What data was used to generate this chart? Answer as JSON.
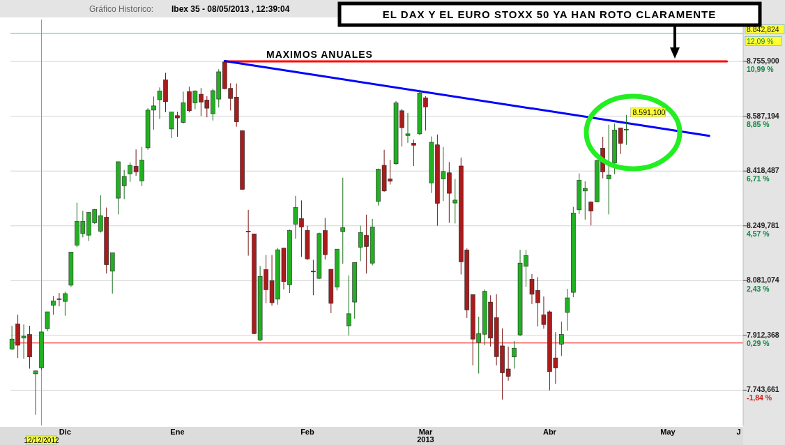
{
  "chart_data": {
    "type": "candlestick",
    "title": "Gráfico Historico:",
    "subtitle": "Ibex 35 - 08/05/2013 , 12:39:04",
    "categories": [
      null,
      null,
      null,
      null,
      null,
      "12/12/2012",
      null,
      null,
      null,
      "Dic",
      null,
      null,
      null,
      null,
      null,
      null,
      null,
      null,
      null,
      null,
      null,
      null,
      null,
      null,
      null,
      null,
      null,
      null,
      "Ene",
      null,
      null,
      null,
      null,
      null,
      null,
      null,
      null,
      null,
      null,
      null,
      null,
      null,
      null,
      null,
      null,
      null,
      null,
      null,
      null,
      null,
      "Feb",
      null,
      null,
      null,
      null,
      null,
      null,
      null,
      null,
      null,
      null,
      null,
      null,
      null,
      null,
      null,
      null,
      null,
      null,
      null,
      "Mar",
      null,
      null,
      null,
      null,
      null,
      null,
      null,
      null,
      null,
      null,
      null,
      null,
      null,
      null,
      null,
      null,
      null,
      null,
      null,
      null,
      "Abr",
      null,
      null,
      null,
      null,
      null,
      null,
      null,
      null,
      null,
      null,
      null,
      null,
      null,
      null,
      null,
      null,
      null,
      null,
      null,
      "May",
      null,
      null,
      null,
      null,
      null,
      null,
      null,
      null,
      null,
      null,
      null,
      "J"
    ],
    "ohlc": [
      [
        7870,
        7942,
        7868,
        7901
      ],
      [
        7948,
        7976,
        7843,
        7882
      ],
      [
        7904,
        7946,
        7840,
        7910
      ],
      [
        7915,
        7942,
        7810,
        7846
      ],
      [
        7794,
        7803,
        7668,
        7803
      ],
      [
        7812,
        7923,
        7807,
        7923
      ],
      [
        7933,
        7985,
        7925,
        7985
      ],
      [
        8005,
        8034,
        7976,
        8018
      ],
      [
        8025,
        8043,
        8002,
        8024
      ],
      [
        8017,
        8047,
        7973,
        8041
      ],
      [
        8067,
        8169,
        8062,
        8169
      ],
      [
        8190,
        8321,
        8184,
        8263
      ],
      [
        8226,
        8296,
        8214,
        8263
      ],
      [
        8221,
        8291,
        8203,
        8291
      ],
      [
        8259,
        8302,
        8255,
        8300
      ],
      [
        8233,
        8344,
        8229,
        8281
      ],
      [
        8276,
        8306,
        8103,
        8130
      ],
      [
        8110,
        8167,
        8041,
        8167
      ],
      [
        8335,
        8447,
        8285,
        8447
      ],
      [
        8373,
        8422,
        8332,
        8402
      ],
      [
        8410,
        8445,
        8385,
        8436
      ],
      [
        8433,
        8485,
        8404,
        8416
      ],
      [
        8388,
        8492,
        8372,
        8452
      ],
      [
        8490,
        8612,
        8484,
        8606
      ],
      [
        8606,
        8648,
        8546,
        8619
      ],
      [
        8638,
        8676,
        8579,
        8665
      ],
      [
        8699,
        8721,
        8600,
        8632
      ],
      [
        8548,
        8600,
        8520,
        8600
      ],
      [
        8589,
        8601,
        8524,
        8582
      ],
      [
        8568,
        8663,
        8565,
        8629
      ],
      [
        8663,
        8678,
        8599,
        8604
      ],
      [
        8628,
        8667,
        8609,
        8665
      ],
      [
        8655,
        8674,
        8588,
        8631
      ],
      [
        8637,
        8649,
        8584,
        8612
      ],
      [
        8595,
        8672,
        8574,
        8666
      ],
      [
        8640,
        8732,
        8614,
        8724
      ],
      [
        8754,
        8757,
        8670,
        8672
      ],
      [
        8673,
        8689,
        8605,
        8642
      ],
      [
        8646,
        8688,
        8555,
        8570
      ],
      [
        8543,
        8543,
        8362,
        8362
      ],
      [
        8233,
        8299,
        8158,
        8231
      ],
      [
        8225,
        8225,
        7916,
        7918
      ],
      [
        7898,
        8126,
        7895,
        8094
      ],
      [
        8115,
        8160,
        8011,
        8053
      ],
      [
        8081,
        8160,
        8004,
        8013
      ],
      [
        8024,
        8182,
        8007,
        8176
      ],
      [
        8181,
        8181,
        8054,
        8078
      ],
      [
        8068,
        8238,
        8043,
        8235
      ],
      [
        8255,
        8342,
        8210,
        8306
      ],
      [
        8272,
        8328,
        8154,
        8246
      ],
      [
        8236,
        8250,
        8145,
        8148
      ],
      [
        8110,
        8145,
        8036,
        8109
      ],
      [
        8088,
        8229,
        8086,
        8226
      ],
      [
        8235,
        8274,
        8146,
        8161
      ],
      [
        8116,
        8116,
        7981,
        8011
      ],
      [
        8061,
        8178,
        8051,
        8178
      ],
      [
        8232,
        8398,
        8133,
        8244
      ],
      [
        7942,
        8097,
        7912,
        7979
      ],
      [
        8015,
        8137,
        7964,
        8137
      ],
      [
        8184,
        8250,
        8141,
        8229
      ],
      [
        8220,
        8284,
        8103,
        8186
      ],
      [
        8135,
        8271,
        8128,
        8246
      ],
      [
        8325,
        8426,
        8312,
        8424
      ],
      [
        8436,
        8484,
        8355,
        8357
      ],
      [
        8394,
        8453,
        8377,
        8387
      ],
      [
        8441,
        8634,
        8438,
        8628
      ],
      [
        8604,
        8610,
        8494,
        8552
      ],
      [
        8528,
        8597,
        8505,
        8533
      ],
      [
        8504,
        8515,
        8434,
        8498
      ],
      [
        8533,
        8669,
        8529,
        8659
      ],
      [
        8644,
        8649,
        8543,
        8616
      ],
      [
        8382,
        8525,
        8351,
        8507
      ],
      [
        8499,
        8531,
        8250,
        8319
      ],
      [
        8394,
        8492,
        8326,
        8417
      ],
      [
        8413,
        8446,
        8259,
        8350
      ],
      [
        8320,
        8394,
        8257,
        8329
      ],
      [
        8434,
        8460,
        8100,
        8139
      ],
      [
        8175,
        8180,
        7966,
        7991
      ],
      [
        8038,
        8038,
        7820,
        7901
      ],
      [
        7891,
        7970,
        7795,
        7918
      ],
      [
        7916,
        8054,
        7882,
        8048
      ],
      [
        8015,
        8036,
        7878,
        7904
      ],
      [
        7967,
        8039,
        7820,
        7847
      ],
      [
        7880,
        7934,
        7715,
        7797
      ],
      [
        7809,
        7878,
        7773,
        7786
      ],
      [
        7846,
        7895,
        7810,
        7873
      ],
      [
        7914,
        8176,
        7910,
        8135
      ],
      [
        8125,
        8176,
        8062,
        8158
      ],
      [
        8085,
        8101,
        8009,
        8039
      ],
      [
        8051,
        8092,
        7940,
        8013
      ],
      [
        7976,
        8032,
        7933,
        7946
      ],
      [
        7985,
        7989,
        7743,
        7801
      ],
      [
        7843,
        7922,
        7763,
        7812
      ],
      [
        7885,
        7955,
        7849,
        7915
      ],
      [
        7983,
        8056,
        7927,
        8028
      ],
      [
        8045,
        8308,
        8030,
        8289
      ],
      [
        8299,
        8411,
        8286,
        8390
      ],
      [
        8357,
        8387,
        8269,
        8365
      ],
      [
        8323,
        8325,
        8251,
        8295
      ],
      [
        8323,
        8454,
        8323,
        8451
      ],
      [
        8489,
        8524,
        8396,
        8416
      ],
      [
        8394,
        8561,
        8285,
        8406
      ],
      [
        8443,
        8565,
        8409,
        8545
      ],
      [
        8551,
        8551,
        8471,
        8504
      ],
      [
        8545,
        8591.1,
        8499,
        8547
      ],
      null,
      null,
      null,
      null,
      null,
      null,
      null,
      null,
      null,
      null,
      null,
      null,
      null,
      null,
      null,
      null,
      null,
      null,
      null
    ],
    "series": [
      {
        "type": "line",
        "color": "#ff0000",
        "values": [
          null,
          null,
          null,
          null,
          null,
          null,
          null,
          null,
          null,
          null,
          null,
          null,
          null,
          null,
          null,
          null,
          null,
          null,
          null,
          null,
          null,
          null,
          null,
          null,
          null,
          null,
          null,
          null,
          null,
          null,
          null,
          null,
          null,
          null,
          null,
          null,
          8756,
          null,
          null,
          null,
          null,
          null,
          null,
          null,
          null,
          null,
          null,
          null,
          null,
          null,
          null,
          null,
          null,
          null,
          null,
          null,
          null,
          null,
          null,
          null,
          null,
          null,
          null,
          null,
          null,
          null,
          null,
          null,
          null,
          null,
          null,
          null,
          null,
          null,
          null,
          null,
          null,
          null,
          null,
          null,
          null,
          null,
          null,
          null,
          null,
          null,
          null,
          null,
          null,
          null,
          null,
          null,
          null,
          null,
          null,
          null,
          null,
          null,
          null,
          null,
          null,
          null,
          null,
          null,
          null,
          null,
          null,
          null,
          null,
          null,
          null,
          null,
          null,
          null,
          null,
          null,
          null,
          null,
          null,
          null,
          null,
          8756,
          null,
          null
        ]
      },
      {
        "type": "line",
        "color": "#0000ff",
        "values": [
          null,
          null,
          null,
          null,
          null,
          null,
          null,
          null,
          null,
          null,
          null,
          null,
          null,
          null,
          null,
          null,
          null,
          null,
          null,
          null,
          null,
          null,
          null,
          null,
          null,
          null,
          null,
          null,
          null,
          null,
          null,
          null,
          null,
          null,
          null,
          null,
          8757,
          null,
          null,
          null,
          null,
          null,
          null,
          null,
          null,
          null,
          null,
          null,
          null,
          null,
          null,
          null,
          null,
          null,
          null,
          null,
          null,
          null,
          null,
          null,
          null,
          null,
          null,
          null,
          null,
          null,
          null,
          null,
          null,
          null,
          null,
          null,
          null,
          null,
          null,
          null,
          null,
          null,
          null,
          null,
          null,
          null,
          null,
          null,
          null,
          null,
          null,
          null,
          null,
          null,
          null,
          null,
          null,
          null,
          null,
          null,
          null,
          null,
          null,
          null,
          null,
          null,
          null,
          null,
          null,
          null,
          null,
          null,
          null,
          null,
          null,
          null,
          null,
          null,
          null,
          null,
          null,
          null,
          8527,
          null,
          null,
          null,
          null,
          null
        ]
      }
    ],
    "ylim": [
      7635,
      8885
    ],
    "yticks": [
      {
        "value": 7743.661,
        "label": "7.743,661"
      },
      {
        "value": 7912.368,
        "label": "7.912,368"
      },
      {
        "value": 8081.074,
        "label": "8.081,074"
      },
      {
        "value": 8249.781,
        "label": "8.249,781"
      },
      {
        "value": 8418.487,
        "label": "8.418,487"
      },
      {
        "value": 8587.194,
        "label": "8.587,194"
      },
      {
        "value": 8755.9,
        "label": "8.755,900"
      }
    ],
    "y2lim": [
      -3.22,
      12.63
    ],
    "y2ticks": [
      {
        "value": -1.84,
        "label": "-1,84 %"
      },
      {
        "value": 0.29,
        "label": "0,29 %"
      },
      {
        "value": 2.43,
        "label": "2,43 %"
      },
      {
        "value": 4.57,
        "label": "4,57 %"
      },
      {
        "value": 6.71,
        "label": "6,71 %"
      },
      {
        "value": 8.85,
        "label": "8,85 %"
      },
      {
        "value": 10.99,
        "label": "10,99 %"
      }
    ],
    "grid": "y",
    "ref_lines": [
      {
        "axis": "y2",
        "value": 0,
        "color": "#ff0000"
      },
      {
        "axis": "y",
        "value": 8842.824,
        "label": "8.842,824",
        "color": "#66cccc"
      },
      {
        "axis": "x",
        "value": "12/12/2012",
        "color": "#66aaaa"
      }
    ],
    "annotations": [
      "MAXIMOS ANUALES",
      "EL DAX Y EL EURO STOXX 50 YA HAN ROTO CLARAMENTE",
      "8.591,100",
      "2013",
      "12,09 %"
    ]
  }
}
